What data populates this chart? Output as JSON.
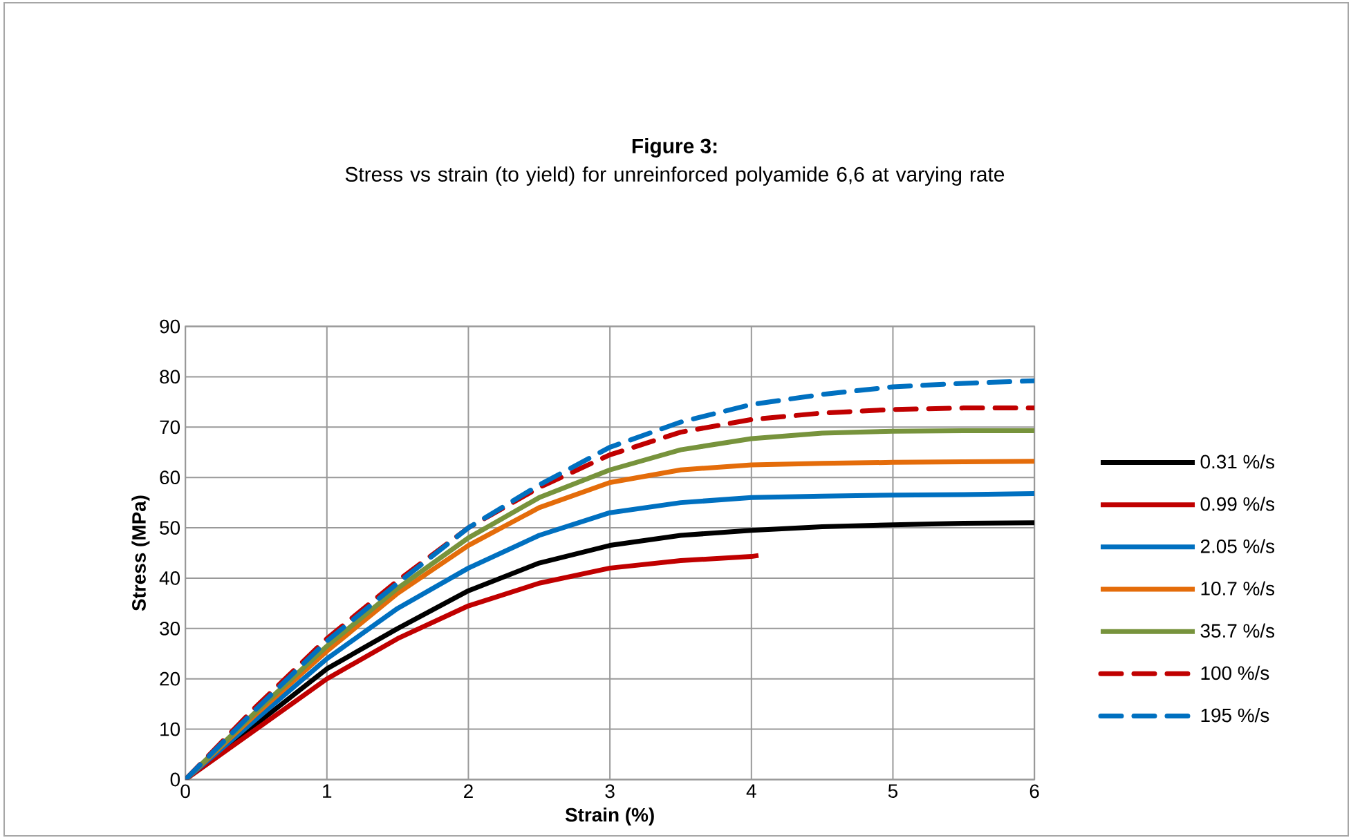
{
  "chart_data": {
    "type": "line",
    "title": "Figure 3:",
    "subtitle": "Stress vs strain (to yield) for unreinforced polyamide 6,6 at varying rate",
    "xlabel": "Strain (%)",
    "ylabel": "Stress  (MPa)",
    "xlim": [
      0,
      6
    ],
    "xticks": [
      0,
      1,
      2,
      3,
      4,
      5,
      6
    ],
    "ylim": [
      0,
      90
    ],
    "yticks": [
      0,
      10,
      20,
      30,
      40,
      50,
      60,
      70,
      80,
      90
    ],
    "grid": true,
    "legend": "right",
    "x": [
      0,
      0.5,
      1,
      1.5,
      2,
      2.5,
      3,
      3.5,
      4,
      4.5,
      5,
      5.5,
      6
    ],
    "series": [
      {
        "name": "0.31 %/s",
        "color": "#000000",
        "line_style": "solid",
        "values": [
          0,
          11,
          22,
          30,
          37.5,
          43,
          46.5,
          48.5,
          49.5,
          50.2,
          50.6,
          50.9,
          51
        ]
      },
      {
        "name": "0.99 %/s",
        "color": "#c00000",
        "line_style": "solid",
        "x": [
          0,
          0.5,
          1,
          1.5,
          2,
          2.5,
          3,
          3.5,
          4,
          4.05
        ],
        "values": [
          0,
          10,
          20,
          28,
          34.5,
          39,
          42,
          43.5,
          44.3,
          44.5
        ]
      },
      {
        "name": "2.05 %/s",
        "color": "#0070c0",
        "line_style": "solid",
        "values": [
          0,
          12,
          24,
          34,
          42,
          48.5,
          53,
          55,
          56,
          56.3,
          56.5,
          56.6,
          56.8
        ]
      },
      {
        "name": "10.7 %/s",
        "color": "#e46c0a",
        "line_style": "solid",
        "values": [
          0,
          13,
          25.5,
          37,
          46.5,
          54,
          59,
          61.5,
          62.5,
          62.8,
          63,
          63.1,
          63.2
        ]
      },
      {
        "name": "35.7 %/s",
        "color": "#77933c",
        "line_style": "solid",
        "values": [
          0,
          13.5,
          26.5,
          38,
          48,
          56,
          61.5,
          65.5,
          67.7,
          68.8,
          69.2,
          69.3,
          69.3
        ]
      },
      {
        "name": "100 %/s",
        "color": "#c00000",
        "line_style": "dashed",
        "values": [
          0,
          14.5,
          28,
          39.5,
          50,
          58,
          64.5,
          69,
          71.5,
          72.8,
          73.5,
          73.8,
          73.8
        ]
      },
      {
        "name": "195 %/s",
        "color": "#0070c0",
        "line_style": "dashed",
        "values": [
          0,
          14,
          27.5,
          39,
          50,
          58.5,
          66,
          71,
          74.5,
          76.5,
          78,
          78.7,
          79.2
        ]
      }
    ]
  }
}
